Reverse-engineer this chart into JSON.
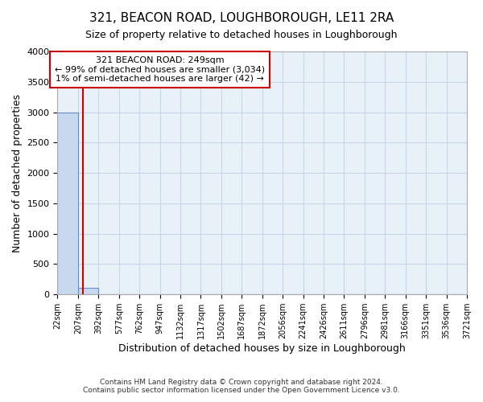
{
  "title": "321, BEACON ROAD, LOUGHBOROUGH, LE11 2RA",
  "subtitle": "Size of property relative to detached houses in Loughborough",
  "xlabel": "Distribution of detached houses by size in Loughborough",
  "ylabel": "Number of detached properties",
  "footer_line1": "Contains HM Land Registry data © Crown copyright and database right 2024.",
  "footer_line2": "Contains public sector information licensed under the Open Government Licence v3.0.",
  "bins": [
    "22sqm",
    "207sqm",
    "392sqm",
    "577sqm",
    "762sqm",
    "947sqm",
    "1132sqm",
    "1317sqm",
    "1502sqm",
    "1687sqm",
    "1872sqm",
    "2056sqm",
    "2241sqm",
    "2426sqm",
    "2611sqm",
    "2796sqm",
    "2981sqm",
    "3166sqm",
    "3351sqm",
    "3536sqm",
    "3721sqm"
  ],
  "bar_heights": [
    3000,
    105,
    0,
    0,
    0,
    0,
    0,
    0,
    0,
    0,
    0,
    0,
    0,
    0,
    0,
    0,
    0,
    0,
    0,
    0
  ],
  "bar_color": "#c8d8ee",
  "bar_edge_color": "#6090c8",
  "ylim": [
    0,
    4000
  ],
  "yticks": [
    0,
    500,
    1000,
    1500,
    2000,
    2500,
    3000,
    3500,
    4000
  ],
  "annotation_text_line1": "321 BEACON ROAD: 249sqm",
  "annotation_text_line2": "← 99% of detached houses are smaller (3,034)",
  "annotation_text_line3": "1% of semi-detached houses are larger (42) →",
  "annotation_box_color": "#ffffff",
  "annotation_border_color": "#cc0000",
  "property_line_x": 249,
  "property_line_color": "#cc0000",
  "grid_color": "#c8d4e8",
  "background_color": "#ffffff",
  "plot_background_color": "#e8f0f8"
}
